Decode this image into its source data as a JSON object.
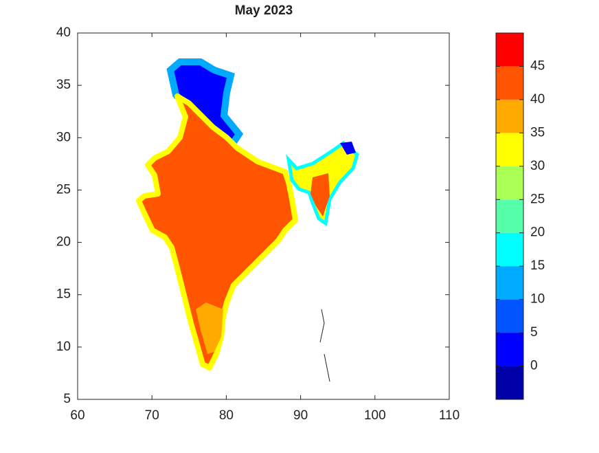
{
  "chart_data": {
    "type": "map",
    "title": "May 2023",
    "xlim": [
      60,
      110
    ],
    "xticks": [
      60,
      70,
      80,
      90,
      100,
      110
    ],
    "ylim": [
      5,
      40
    ],
    "yticks": [
      5,
      10,
      15,
      20,
      25,
      30,
      35,
      40
    ],
    "colorbar": {
      "clim": [
        -5,
        50
      ],
      "ticks": [
        0,
        5,
        10,
        15,
        20,
        25,
        30,
        35,
        40,
        45
      ],
      "bounds": [
        -5,
        0,
        5,
        10,
        15,
        20,
        25,
        30,
        35,
        40,
        45,
        50
      ],
      "colors": [
        "#0000a8",
        "#0000ff",
        "#0055ff",
        "#00aaff",
        "#00ffff",
        "#55ffaa",
        "#aaff55",
        "#ffff00",
        "#ffaa00",
        "#ff5500",
        "#ff0000"
      ]
    }
  }
}
